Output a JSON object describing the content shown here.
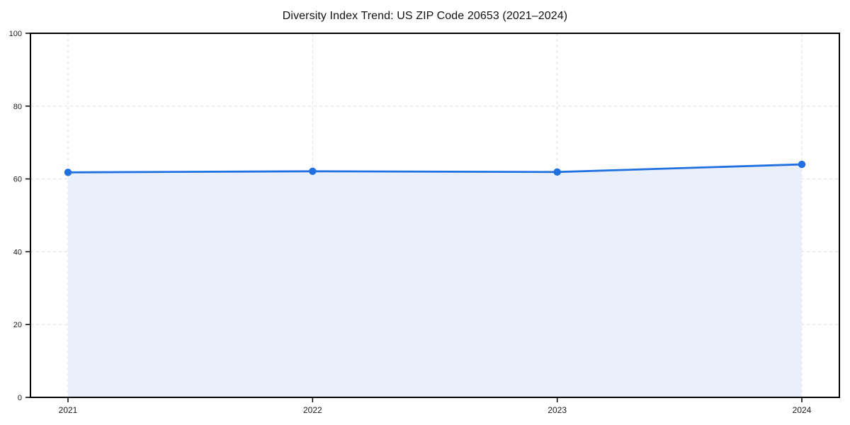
{
  "chart_data": {
    "type": "area",
    "title": "Diversity Index Trend: US ZIP Code 20653 (2021–2024)",
    "categories": [
      "2021",
      "2022",
      "2023",
      "2024"
    ],
    "series": [
      {
        "name": "Diversity Index",
        "values": [
          61.8,
          62.1,
          61.9,
          64.0
        ]
      }
    ],
    "xlabel": "",
    "ylabel": "",
    "ylim": [
      0,
      100
    ],
    "yticks": [
      0,
      20,
      40,
      60,
      80,
      100
    ],
    "grid": true,
    "grid_style": "dashed",
    "legend": "none",
    "colors": {
      "line": "#2170e0",
      "marker": "#2170e0",
      "fill": "#e9f0fc",
      "gridline": "#dcdcdc",
      "spine": "#000000",
      "tick_text": "#1a1a1a"
    }
  }
}
